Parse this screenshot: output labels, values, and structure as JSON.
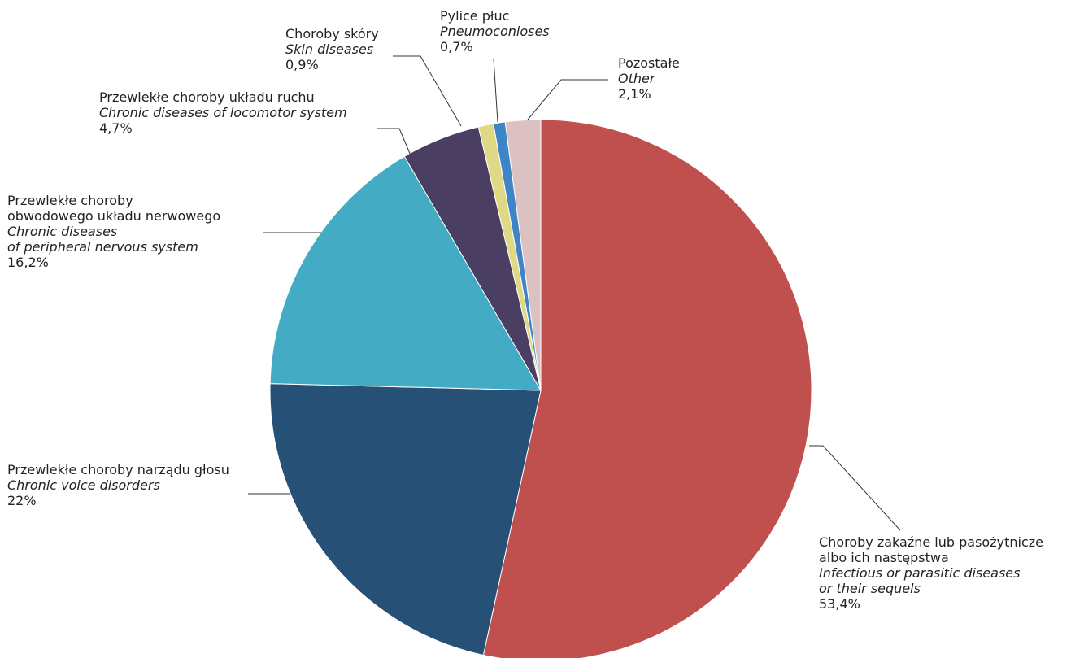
{
  "chart_data": {
    "type": "pie",
    "start_angle_deg": 0,
    "direction": "clockwise",
    "slices": [
      {
        "pl": "Choroby zakaźne lub pasożytnicze albo ich następstwa",
        "pl_lines": [
          "Choroby zakaźne lub pasożytnicze",
          "albo ich następstwa"
        ],
        "en_lines": [
          "Infectious or parasitic diseases",
          "or their sequels"
        ],
        "value_label": "53,4%",
        "value": 53.4,
        "color": "#c0504d"
      },
      {
        "pl": "Przewlekłe choroby narządu głosu",
        "pl_lines": [
          "Przewlekłe choroby narządu głosu"
        ],
        "en_lines": [
          "Chronic voice disorders"
        ],
        "value_label": "22%",
        "value": 22.0,
        "color": "#265075"
      },
      {
        "pl": "Przewlekłe choroby obwodowego układu nerwowego",
        "pl_lines": [
          "Przewlekłe choroby",
          "obwodowego układu nerwowego"
        ],
        "en_lines": [
          "Chronic diseases",
          "of peripheral nervous system"
        ],
        "value_label": "16,2%",
        "value": 16.2,
        "color": "#43acc4"
      },
      {
        "pl": "Przewlekłe choroby układu ruchu",
        "pl_lines": [
          "Przewlekłe choroby układu ruchu"
        ],
        "en_lines": [
          "Chronic diseases of locomotor system"
        ],
        "value_label": "4,7%",
        "value": 4.7,
        "color": "#4a3e62"
      },
      {
        "pl": "Choroby skóry",
        "pl_lines": [
          "Choroby skóry"
        ],
        "en_lines": [
          "Skin diseases"
        ],
        "value_label": "0,9%",
        "value": 0.9,
        "color": "#dfd884"
      },
      {
        "pl": "Pylice płuc",
        "pl_lines": [
          "Pylice płuc"
        ],
        "en_lines": [
          "Pneumoconioses"
        ],
        "value_label": "0,7%",
        "value": 0.7,
        "color": "#3f84c6"
      },
      {
        "pl": "Pozostałe",
        "pl_lines": [
          "Pozostałe"
        ],
        "en_lines": [
          "Other"
        ],
        "value_label": "2,1%",
        "value": 2.1,
        "color": "#dbc1c1"
      }
    ]
  }
}
